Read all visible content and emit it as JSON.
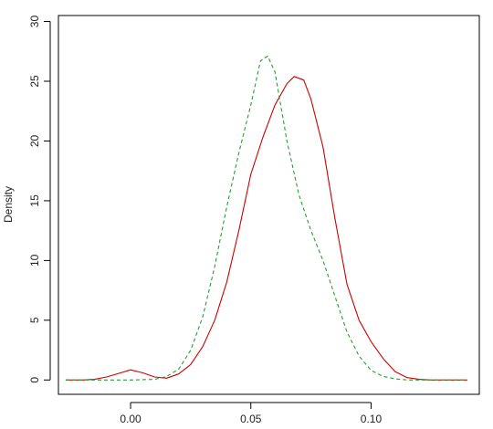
{
  "chart_data": {
    "type": "line",
    "title": "",
    "xlabel": "",
    "ylabel": "Density",
    "xlim": [
      -0.03,
      0.145
    ],
    "ylim": [
      -1.2,
      30.5
    ],
    "xticks": [
      0.0,
      0.05,
      0.1
    ],
    "xtick_labels": [
      "0.00",
      "0.05",
      "0.10"
    ],
    "yticks": [
      0,
      5,
      10,
      15,
      20,
      25,
      30
    ],
    "ytick_labels": [
      "0",
      "5",
      "10",
      "15",
      "20",
      "25",
      "30"
    ],
    "grid": false,
    "legend": "none",
    "series": [
      {
        "color": "#cc0000",
        "dash": "solid",
        "x": [
          -0.027,
          -0.02,
          -0.015,
          -0.01,
          -0.005,
          0.0,
          0.005,
          0.01,
          0.015,
          0.02,
          0.025,
          0.03,
          0.035,
          0.04,
          0.045,
          0.05,
          0.055,
          0.06,
          0.065,
          0.068,
          0.072,
          0.075,
          0.08,
          0.085,
          0.09,
          0.095,
          0.1,
          0.105,
          0.11,
          0.115,
          0.12,
          0.125,
          0.13,
          0.14
        ],
        "y": [
          0,
          0,
          0.05,
          0.25,
          0.55,
          0.85,
          0.6,
          0.25,
          0.15,
          0.5,
          1.3,
          2.8,
          5.0,
          8.2,
          12.5,
          17.2,
          20.3,
          23.0,
          24.8,
          25.4,
          25.1,
          23.5,
          19.5,
          13.5,
          8.0,
          5.0,
          3.2,
          1.8,
          0.7,
          0.2,
          0.05,
          0,
          0,
          0
        ]
      },
      {
        "color": "#2a9a3a",
        "dash": "dashed",
        "x": [
          -0.027,
          -0.01,
          0.0,
          0.01,
          0.015,
          0.02,
          0.025,
          0.03,
          0.035,
          0.04,
          0.045,
          0.05,
          0.054,
          0.057,
          0.06,
          0.065,
          0.07,
          0.075,
          0.08,
          0.085,
          0.09,
          0.095,
          0.1,
          0.105,
          0.11,
          0.115,
          0.12,
          0.14
        ],
        "y": [
          0,
          0,
          0,
          0.05,
          0.3,
          0.9,
          2.5,
          5.3,
          9.5,
          14.5,
          19.0,
          23.0,
          26.7,
          27.1,
          25.8,
          20.0,
          15.5,
          12.5,
          10.0,
          7.0,
          4.0,
          2.0,
          0.8,
          0.3,
          0.1,
          0,
          0,
          0
        ]
      }
    ]
  }
}
